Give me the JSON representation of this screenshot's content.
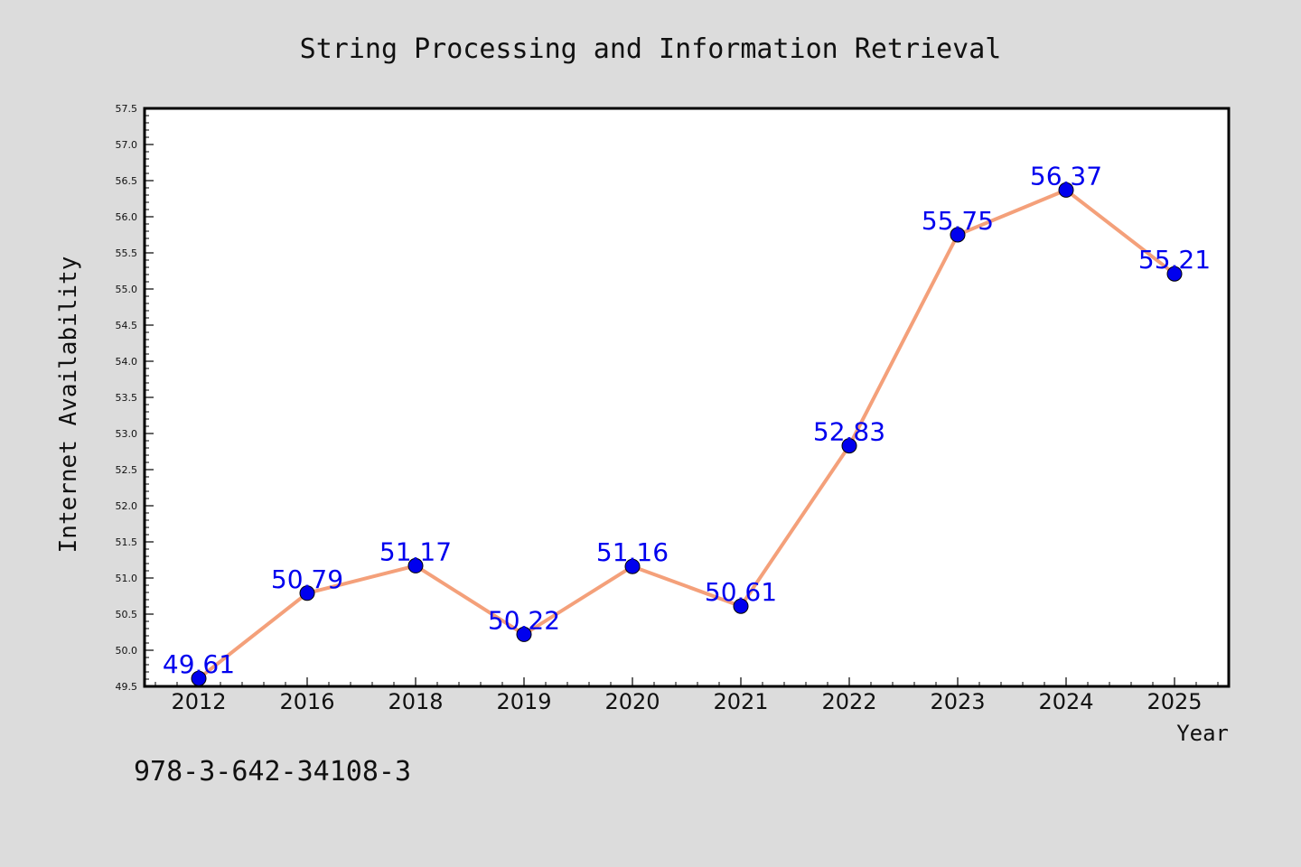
{
  "chart_data": {
    "type": "line",
    "title": "String Processing and Information Retrieval",
    "xlabel": "Year",
    "ylabel": "Internet Availability",
    "categories": [
      "2012",
      "2016",
      "2018",
      "2019",
      "2020",
      "2021",
      "2022",
      "2023",
      "2024",
      "2025"
    ],
    "values": [
      49.61,
      50.79,
      51.17,
      50.22,
      51.16,
      50.61,
      52.83,
      55.75,
      56.37,
      55.21
    ],
    "data_labels": [
      "49.61",
      "50.79",
      "51.17",
      "50.22",
      "51.16",
      "50.61",
      "52.83",
      "55.75",
      "56.37",
      "55.21"
    ],
    "ylim": [
      49.5,
      57.5
    ],
    "yticks": [
      "49.5",
      "50.0",
      "50.5",
      "51.0",
      "51.5",
      "52.0",
      "52.5",
      "53.0",
      "53.5",
      "54.0",
      "54.5",
      "55.0",
      "55.5",
      "56.0",
      "56.5",
      "57.0",
      "57.5"
    ],
    "grid": false,
    "line_color": "#f4a07a",
    "marker_color": "#0000ee",
    "label_color": "#0000ee"
  },
  "footer": {
    "isbn": "978-3-642-34108-3"
  }
}
